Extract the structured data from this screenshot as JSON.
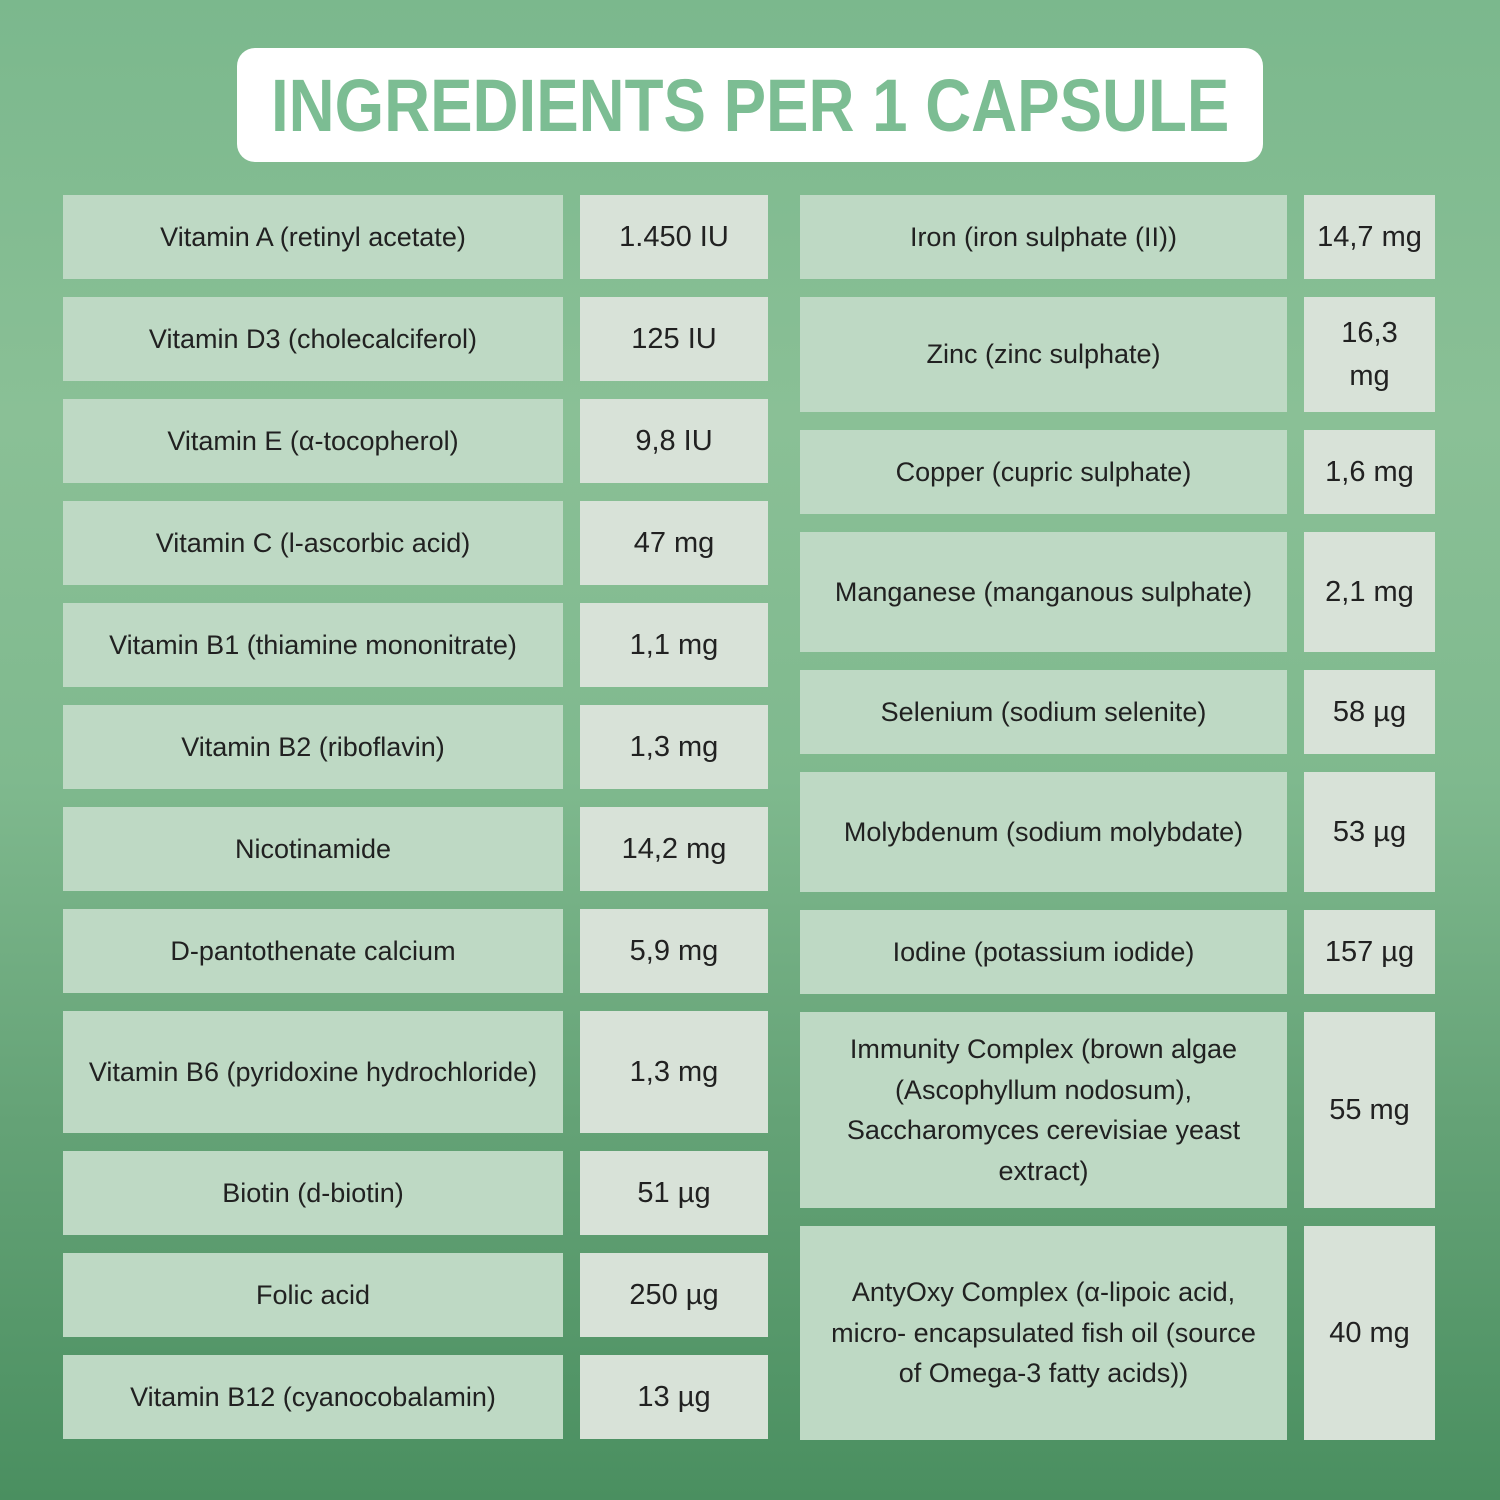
{
  "title": "INGREDIENTS PER 1 CAPSULE",
  "colors": {
    "background_top": "#7bb88d",
    "background_mid": "#8ac096",
    "background_bottom": "#4a8f60",
    "title_box_bg": "#ffffff",
    "title_text": "#7cbd93",
    "name_cell_bg": "#bed9c4",
    "value_cell_bg": "#d8e2d8",
    "cell_text": "#212121"
  },
  "table": {
    "left_rows": [
      {
        "name": "Vitamin A (retinyl acetate)",
        "value": "1.450 IU"
      },
      {
        "name": "Vitamin D3 (cholecalciferol)",
        "value": "125 IU"
      },
      {
        "name": "Vitamin E (α-tocopherol)",
        "value": "9,8 IU"
      },
      {
        "name": "Vitamin C (l-ascorbic acid)",
        "value": "47 mg"
      },
      {
        "name": "Vitamin B1 (thiamine mononitrate)",
        "value": "1,1 mg"
      },
      {
        "name": "Vitamin B2 (riboflavin)",
        "value": "1,3 mg"
      },
      {
        "name": "Nicotinamide",
        "value": "14,2 mg"
      },
      {
        "name": "D-pantothenate calcium",
        "value": "5,9 mg"
      },
      {
        "name": "Vitamin B6 (pyridoxine hydrochloride)",
        "value": "1,3 mg"
      },
      {
        "name": "Biotin (d-biotin)",
        "value": "51 µg"
      },
      {
        "name": "Folic acid",
        "value": "250 µg"
      },
      {
        "name": "Vitamin B12 (cyanocobalamin)",
        "value": "13 µg"
      }
    ],
    "right_rows": [
      {
        "name": "Iron (iron sulphate (II))",
        "value": "14,7 mg"
      },
      {
        "name": "Zinc (zinc sulphate)",
        "value": "16,3\nmg"
      },
      {
        "name": "Copper (cupric sulphate)",
        "value": "1,6 mg"
      },
      {
        "name": "Manganese (manganous sulphate)",
        "value": "2,1 mg"
      },
      {
        "name": "Selenium (sodium selenite)",
        "value": "58 µg"
      },
      {
        "name": "Molybdenum (sodium molybdate)",
        "value": "53 µg"
      },
      {
        "name": "Iodine (potassium iodide)",
        "value": "157 µg"
      },
      {
        "name": "Immunity Complex (brown algae (Ascophyllum nodosum), Saccharomyces cerevisiae yeast extract)",
        "value": "55 mg"
      },
      {
        "name": "AntyOxy Complex (α-lipoic acid, micro- encapsulated fish oil (source of Omega-3 fatty acids))",
        "value": "40 mg"
      }
    ]
  }
}
